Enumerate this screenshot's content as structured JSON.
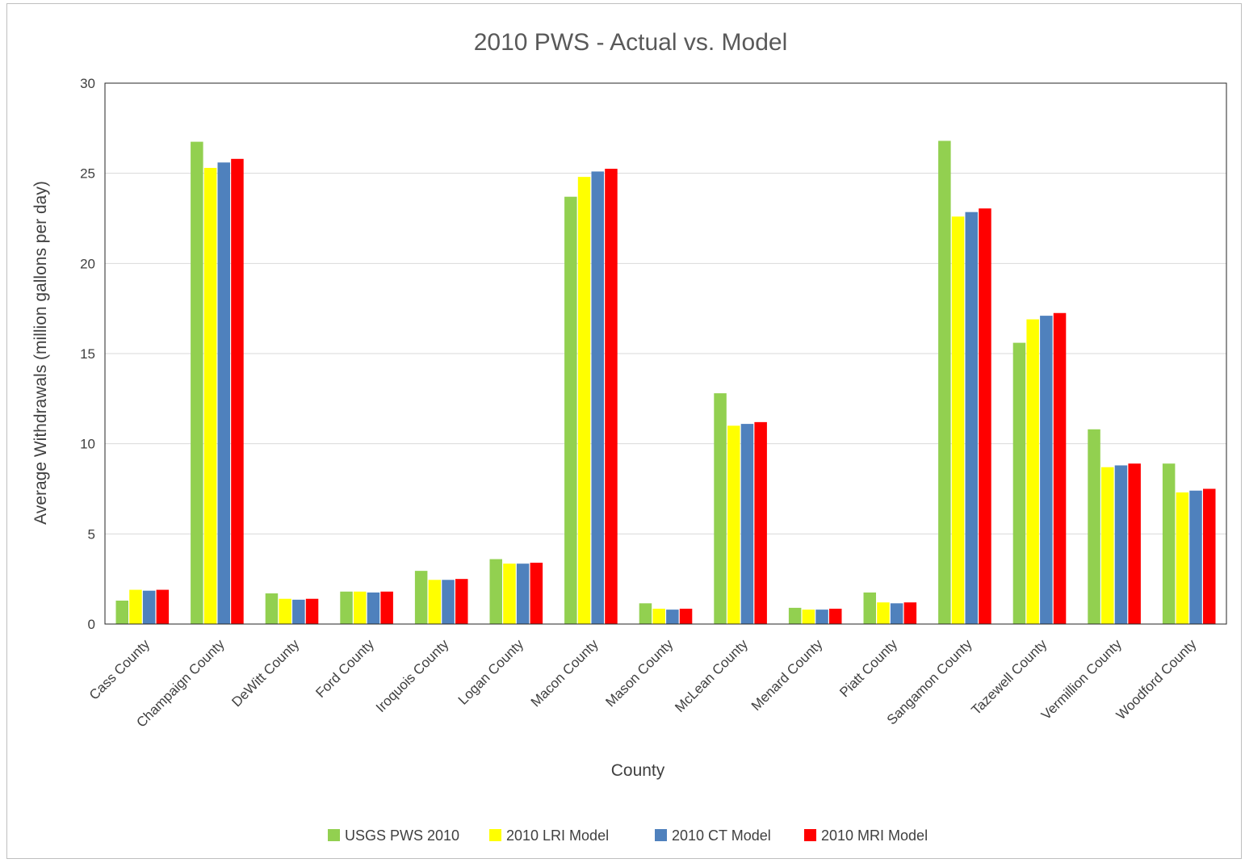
{
  "chart_data": {
    "type": "bar",
    "title": "2010 PWS - Actual vs. Model",
    "xlabel": "County",
    "ylabel": "Average Withdrawals (million gallons per day)",
    "ylim": [
      0,
      30
    ],
    "yticks": [
      0,
      5,
      10,
      15,
      20,
      25,
      30
    ],
    "grid": true,
    "legend_position": "bottom",
    "categories": [
      "Cass County",
      "Champaign County",
      "DeWitt County",
      "Ford County",
      "Iroquois County",
      "Logan County",
      "Macon County",
      "Mason County",
      "McLean County",
      "Menard County",
      "Piatt County",
      "Sangamon County",
      "Tazewell County",
      "Vermillion County",
      "Woodford County"
    ],
    "series": [
      {
        "name": "USGS PWS 2010",
        "color": "#92d050",
        "values": [
          1.3,
          26.75,
          1.7,
          1.8,
          2.95,
          3.6,
          23.7,
          1.15,
          12.8,
          0.9,
          1.75,
          26.8,
          15.6,
          10.8,
          8.9
        ]
      },
      {
        "name": "2010 LRI Model",
        "color": "#ffff00",
        "values": [
          1.9,
          25.3,
          1.4,
          1.8,
          2.45,
          3.35,
          24.8,
          0.85,
          11.0,
          0.8,
          1.2,
          22.6,
          16.9,
          8.7,
          7.3
        ]
      },
      {
        "name": "2010 CT Model",
        "color": "#4f81bd",
        "values": [
          1.85,
          25.6,
          1.35,
          1.75,
          2.45,
          3.35,
          25.1,
          0.8,
          11.1,
          0.8,
          1.15,
          22.85,
          17.1,
          8.8,
          7.4
        ]
      },
      {
        "name": "2010 MRI Model",
        "color": "#ff0000",
        "values": [
          1.9,
          25.8,
          1.4,
          1.8,
          2.5,
          3.4,
          25.25,
          0.85,
          11.2,
          0.85,
          1.2,
          23.05,
          17.25,
          8.9,
          7.5
        ]
      }
    ]
  }
}
